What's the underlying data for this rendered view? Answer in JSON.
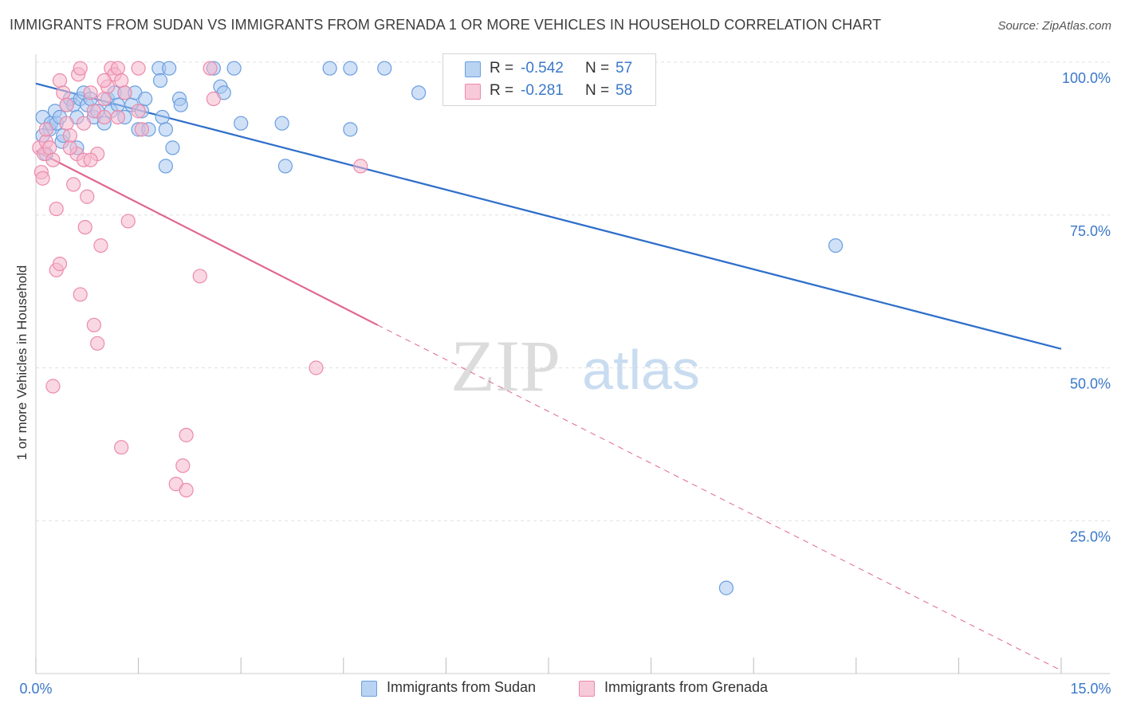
{
  "title": "IMMIGRANTS FROM SUDAN VS IMMIGRANTS FROM GRENADA 1 OR MORE VEHICLES IN HOUSEHOLD CORRELATION CHART",
  "source": "Source: ZipAtlas.com",
  "watermark": {
    "zip": "ZIP",
    "atlas": "atlas"
  },
  "legend": {
    "sudan": {
      "r_label": "R =",
      "r_value": "-0.542",
      "n_label": "N =",
      "n_value": "57"
    },
    "grenada": {
      "r_label": "R =",
      "r_value": "-0.281",
      "n_label": "N =",
      "n_value": "58"
    }
  },
  "colors": {
    "sudan_fill": "#a9c8f0",
    "sudan_stroke": "#6a9ee0",
    "sudan_line": "#2f6fca",
    "grenada_fill": "#f5b8cc",
    "grenada_stroke": "#eb8aab",
    "grenada_line": "#e0668f",
    "tick_label": "#3a78c9",
    "grid": "#e0e0e0"
  },
  "chart_data": {
    "type": "scatter",
    "title": "IMMIGRANTS FROM SUDAN VS IMMIGRANTS FROM GRENADA 1 OR MORE VEHICLES IN HOUSEHOLD CORRELATION CHART",
    "xlabel": "",
    "ylabel": "1 or more Vehicles in Household",
    "xlim": [
      0,
      15
    ],
    "ylim": [
      0,
      100
    ],
    "x_tick_labels": [
      "0.0%",
      "15.0%"
    ],
    "y_ticks": [
      25,
      50,
      75,
      100
    ],
    "y_tick_labels": [
      "25.0%",
      "50.0%",
      "75.0%",
      "100.0%"
    ],
    "legend_position": "bottom",
    "series": [
      {
        "name": "Immigrants from Sudan",
        "points": [
          [
            0.1,
            91
          ],
          [
            0.2,
            89
          ],
          [
            0.22,
            90
          ],
          [
            0.28,
            92
          ],
          [
            0.3,
            90
          ],
          [
            0.35,
            91
          ],
          [
            0.38,
            87
          ],
          [
            0.4,
            88
          ],
          [
            0.45,
            93
          ],
          [
            0.5,
            94
          ],
          [
            0.55,
            93
          ],
          [
            0.6,
            91
          ],
          [
            0.65,
            94
          ],
          [
            0.7,
            95
          ],
          [
            0.75,
            93
          ],
          [
            0.8,
            94
          ],
          [
            0.85,
            91
          ],
          [
            0.9,
            92
          ],
          [
            1.0,
            90
          ],
          [
            1.05,
            94
          ],
          [
            1.1,
            92
          ],
          [
            1.15,
            95
          ],
          [
            1.2,
            93
          ],
          [
            1.3,
            95
          ],
          [
            1.4,
            93
          ],
          [
            1.45,
            95
          ],
          [
            1.55,
            92
          ],
          [
            1.5,
            89
          ],
          [
            1.65,
            89
          ],
          [
            1.6,
            94
          ],
          [
            1.8,
            99
          ],
          [
            1.82,
            97
          ],
          [
            1.85,
            91
          ],
          [
            1.9,
            89
          ],
          [
            1.9,
            83
          ],
          [
            2.0,
            86
          ],
          [
            2.1,
            94
          ],
          [
            2.12,
            93
          ],
          [
            1.95,
            99
          ],
          [
            2.6,
            99
          ],
          [
            2.7,
            96
          ],
          [
            2.75,
            95
          ],
          [
            2.9,
            99
          ],
          [
            3.0,
            90
          ],
          [
            3.6,
            90
          ],
          [
            3.65,
            83
          ],
          [
            4.3,
            99
          ],
          [
            4.6,
            99
          ],
          [
            4.6,
            89
          ],
          [
            5.1,
            99
          ],
          [
            5.6,
            95
          ],
          [
            0.6,
            86
          ],
          [
            0.1,
            88
          ],
          [
            0.15,
            85
          ],
          [
            11.7,
            70
          ],
          [
            10.1,
            14
          ],
          [
            1.3,
            91
          ]
        ]
      },
      {
        "name": "Immigrants from Grenada",
        "points": [
          [
            0.05,
            86
          ],
          [
            0.08,
            82
          ],
          [
            0.1,
            81
          ],
          [
            0.12,
            85
          ],
          [
            0.15,
            87
          ],
          [
            0.2,
            86
          ],
          [
            0.25,
            84
          ],
          [
            0.3,
            76
          ],
          [
            0.35,
            97
          ],
          [
            0.4,
            95
          ],
          [
            0.45,
            93
          ],
          [
            0.5,
            88
          ],
          [
            0.55,
            80
          ],
          [
            0.6,
            85
          ],
          [
            0.62,
            98
          ],
          [
            0.65,
            99
          ],
          [
            0.7,
            84
          ],
          [
            0.7,
            90
          ],
          [
            0.72,
            73
          ],
          [
            0.75,
            78
          ],
          [
            0.8,
            95
          ],
          [
            0.85,
            92
          ],
          [
            0.9,
            85
          ],
          [
            0.95,
            70
          ],
          [
            1.0,
            94
          ],
          [
            1.05,
            96
          ],
          [
            1.1,
            99
          ],
          [
            1.15,
            98
          ],
          [
            1.2,
            99
          ],
          [
            1.25,
            97
          ],
          [
            1.3,
            95
          ],
          [
            1.35,
            74
          ],
          [
            1.5,
            92
          ],
          [
            1.55,
            89
          ],
          [
            1.5,
            99
          ],
          [
            2.55,
            99
          ],
          [
            2.6,
            94
          ],
          [
            0.3,
            66
          ],
          [
            0.35,
            67
          ],
          [
            0.65,
            62
          ],
          [
            0.85,
            57
          ],
          [
            0.9,
            54
          ],
          [
            0.25,
            47
          ],
          [
            1.25,
            37
          ],
          [
            2.4,
            65
          ],
          [
            2.2,
            39
          ],
          [
            2.15,
            34
          ],
          [
            2.05,
            31
          ],
          [
            2.2,
            30
          ],
          [
            4.1,
            50
          ],
          [
            4.75,
            83
          ],
          [
            1.0,
            97
          ],
          [
            0.15,
            89
          ],
          [
            0.45,
            90
          ],
          [
            1.0,
            91
          ],
          [
            1.2,
            91
          ],
          [
            0.5,
            86
          ],
          [
            0.8,
            84
          ]
        ]
      }
    ],
    "trend_lines": [
      {
        "series": "Immigrants from Sudan",
        "x": [
          0,
          15
        ],
        "y": [
          96.5,
          53.1
        ],
        "style": "solid"
      },
      {
        "series": "Immigrants from Grenada",
        "x": [
          0,
          5.0
        ],
        "y": [
          85.5,
          57.0
        ],
        "style": "solid"
      },
      {
        "series": "Immigrants from Grenada",
        "x": [
          5.0,
          15
        ],
        "y": [
          57.0,
          0.5
        ],
        "style": "dashed"
      }
    ]
  }
}
